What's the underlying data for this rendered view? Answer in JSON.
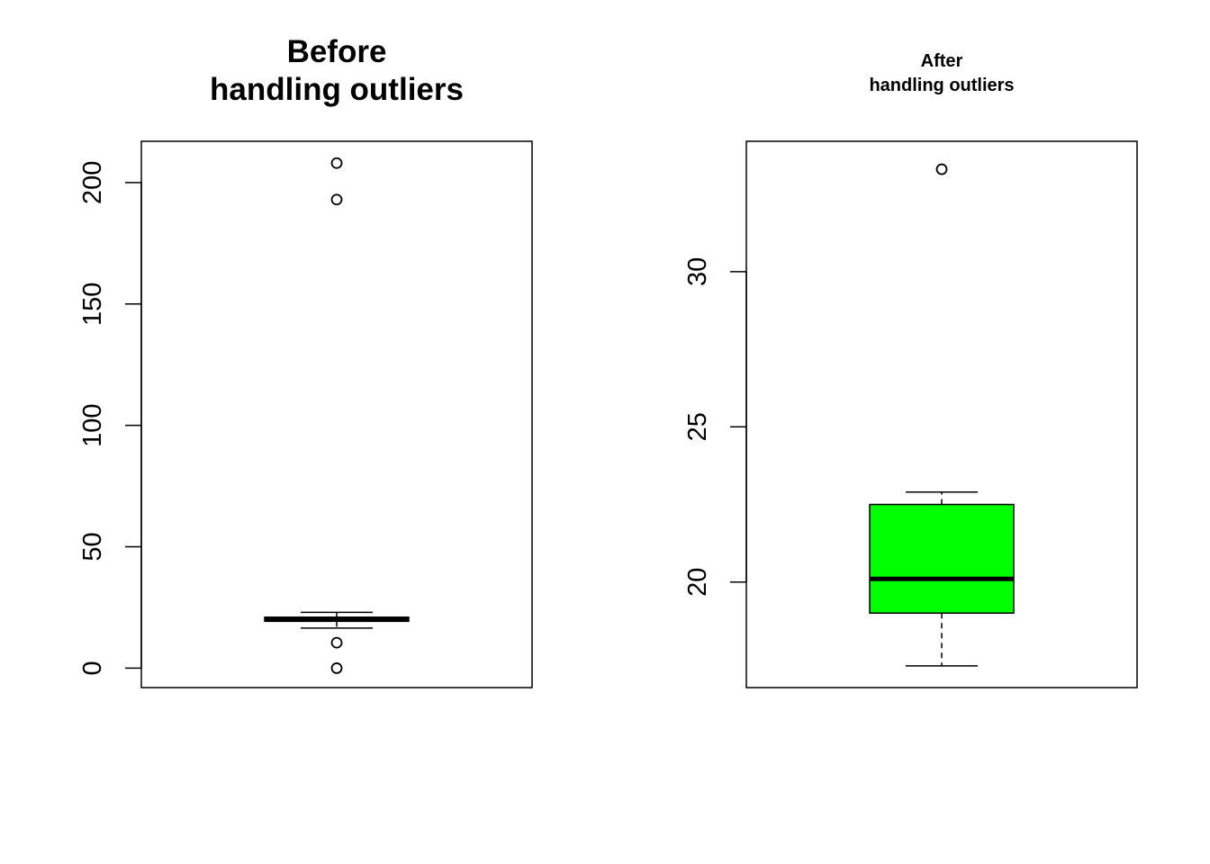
{
  "chart_data": [
    {
      "type": "boxplot",
      "title_lines": [
        "Before",
        "handling outliers"
      ],
      "xlabel": "",
      "ylabel": "",
      "ylim": [
        -8,
        217
      ],
      "yticks": [
        0,
        50,
        100,
        150,
        200
      ],
      "ytick_labels": [
        "0",
        "50",
        "100",
        "150",
        "200"
      ],
      "box": {
        "whisker_low": 16.5,
        "q1": 19.3,
        "median": 20.0,
        "q3": 21.0,
        "whisker_high": 23.0
      },
      "outliers": [
        208,
        193,
        10.5,
        0
      ],
      "fill": "#ffffff",
      "grid": false
    },
    {
      "type": "boxplot",
      "title_lines": [
        "After",
        "handling outliers"
      ],
      "xlabel": "",
      "ylabel": "",
      "ylim": [
        16.6,
        34.2
      ],
      "yticks": [
        20,
        25,
        30
      ],
      "ytick_labels": [
        "20",
        "25",
        "30"
      ],
      "box": {
        "whisker_low": 17.3,
        "q1": 19.0,
        "median": 20.1,
        "q3": 22.5,
        "whisker_high": 22.9
      },
      "outliers": [
        33.3
      ],
      "fill": "#00ff00",
      "grid": false
    }
  ]
}
